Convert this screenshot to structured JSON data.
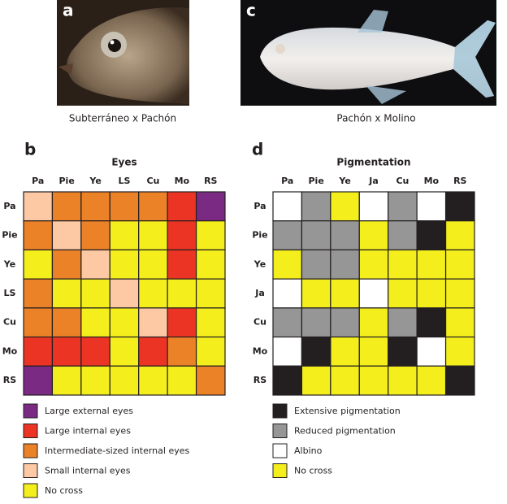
{
  "panels": [
    {
      "label": "a",
      "caption": "Subterráneo x Pachón"
    },
    {
      "label": "c",
      "caption": "Pachón x Molino"
    }
  ],
  "matrices": [
    {
      "label": "b",
      "title": "Eyes",
      "columns": [
        "Pa",
        "Pie",
        "Ye",
        "LS",
        "Cu",
        "Mo",
        "RS"
      ],
      "rows": [
        "Pa",
        "Pie",
        "Ye",
        "LS",
        "Cu",
        "Mo",
        "RS"
      ],
      "cells": [
        [
          3,
          2,
          2,
          2,
          2,
          1,
          0
        ],
        [
          2,
          3,
          2,
          4,
          4,
          1,
          4
        ],
        [
          4,
          2,
          3,
          4,
          4,
          1,
          4
        ],
        [
          2,
          4,
          4,
          3,
          4,
          4,
          4
        ],
        [
          2,
          2,
          4,
          4,
          3,
          1,
          4
        ],
        [
          1,
          1,
          1,
          4,
          1,
          2,
          4
        ],
        [
          0,
          4,
          4,
          4,
          4,
          4,
          2
        ]
      ],
      "legend": [
        {
          "label": "Large external eyes",
          "color": "#7b2a84"
        },
        {
          "label": "Large internal eyes",
          "color": "#ec3424"
        },
        {
          "label": "Intermediate-sized internal eyes",
          "color": "#ec8228"
        },
        {
          "label": "Small internal eyes",
          "color": "#fcc9a4"
        },
        {
          "label": "No cross",
          "color": "#f4ef1c"
        }
      ]
    },
    {
      "label": "d",
      "title": "Pigmentation",
      "columns": [
        "Pa",
        "Pie",
        "Ye",
        "Ja",
        "Cu",
        "Mo",
        "RS"
      ],
      "rows": [
        "Pa",
        "Pie",
        "Ye",
        "Ja",
        "Cu",
        "Mo",
        "RS"
      ],
      "cells": [
        [
          2,
          1,
          3,
          2,
          1,
          2,
          0
        ],
        [
          1,
          1,
          1,
          3,
          1,
          0,
          3
        ],
        [
          3,
          1,
          1,
          3,
          3,
          3,
          3
        ],
        [
          2,
          3,
          3,
          2,
          3,
          3,
          3
        ],
        [
          1,
          1,
          1,
          3,
          1,
          0,
          3
        ],
        [
          2,
          0,
          3,
          3,
          0,
          2,
          3
        ],
        [
          0,
          3,
          3,
          3,
          3,
          3,
          0
        ]
      ],
      "legend": [
        {
          "label": "Extensive pigmentation",
          "color": "#231f20"
        },
        {
          "label": "Reduced pigmentation",
          "color": "#969696"
        },
        {
          "label": "Albino",
          "color": "#ffffff"
        },
        {
          "label": "No cross",
          "color": "#f4ef1c"
        }
      ]
    }
  ]
}
